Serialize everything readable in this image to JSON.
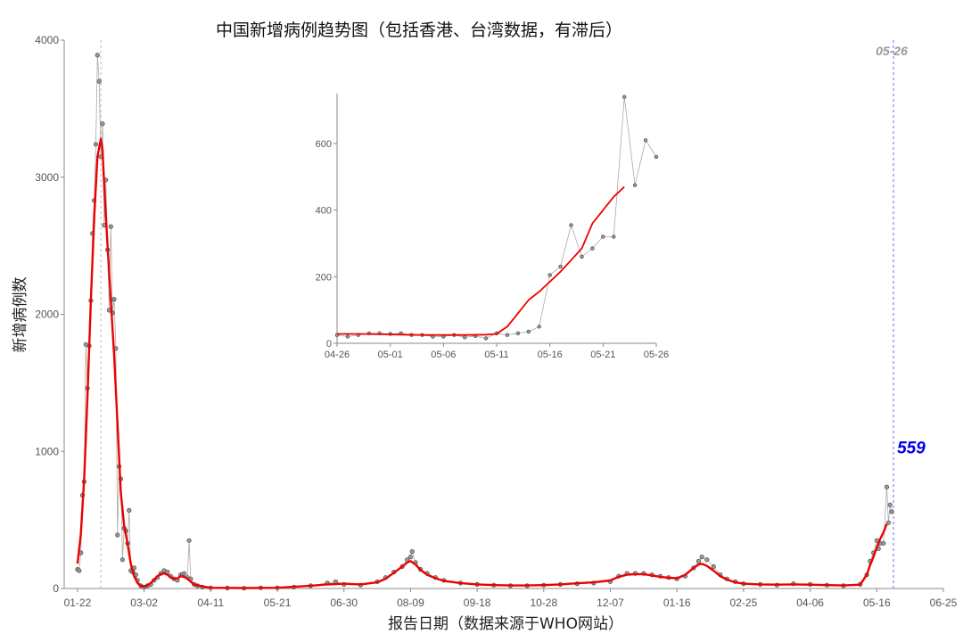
{
  "colors": {
    "smooth_line": "#ee0000",
    "raw_line": "#aaaaaa",
    "points": "#555555",
    "annotation_value": "#0000ee",
    "latest_date_marker": "#6666ff",
    "peak_marker": "#bbbbbb"
  },
  "chart_data": [
    {
      "type": "line",
      "title": "中国新增病例趋势图（包括香港、台湾数据，有滞后）",
      "xlabel": "报告日期（数据来源于WHO网站）",
      "ylabel": "新增病例数",
      "x_tick_labels": [
        "01-22",
        "03-02",
        "04-11",
        "05-21",
        "06-30",
        "08-09",
        "09-18",
        "10-28",
        "12-07",
        "01-16",
        "02-25",
        "04-06",
        "05-16",
        "06-25"
      ],
      "y_tick_labels": [
        "0",
        "1000",
        "2000",
        "3000",
        "4000"
      ],
      "ylim": [
        0,
        4000
      ],
      "x_range_days": [
        -8,
        520
      ],
      "grid": false,
      "annotations": {
        "peak_line_day": 14,
        "latest_line_day": 490,
        "latest_date_label": "05-26",
        "latest_value_label": "559"
      },
      "series": [
        {
          "kind": "daily",
          "points": [
            [
              0,
              140
            ],
            [
              1,
              130
            ],
            [
              2,
              260
            ],
            [
              3,
              680
            ],
            [
              4,
              780
            ],
            [
              5,
              1780
            ],
            [
              6,
              1460
            ],
            [
              7,
              1770
            ],
            [
              8,
              2100
            ],
            [
              9,
              2590
            ],
            [
              10,
              2830
            ],
            [
              11,
              3240
            ],
            [
              12,
              3890
            ],
            [
              13,
              3700
            ],
            [
              14,
              3150
            ],
            [
              15,
              3390
            ],
            [
              16,
              2650
            ],
            [
              17,
              2980
            ],
            [
              18,
              2470
            ],
            [
              19,
              2030
            ],
            [
              20,
              2640
            ],
            [
              21,
              2010
            ],
            [
              22,
              2110
            ],
            [
              23,
              1750
            ],
            [
              24,
              390
            ],
            [
              25,
              890
            ],
            [
              26,
              800
            ],
            [
              27,
              210
            ],
            [
              28,
              440
            ],
            [
              29,
              420
            ],
            [
              30,
              330
            ],
            [
              31,
              570
            ],
            [
              32,
              130
            ],
            [
              33,
              120
            ],
            [
              34,
              150
            ],
            [
              35,
              100
            ],
            [
              36,
              60
            ],
            [
              38,
              20
            ],
            [
              40,
              10
            ],
            [
              42,
              20
            ],
            [
              44,
              30
            ],
            [
              46,
              60
            ],
            [
              48,
              80
            ],
            [
              50,
              110
            ],
            [
              52,
              130
            ],
            [
              54,
              120
            ],
            [
              56,
              90
            ],
            [
              58,
              70
            ],
            [
              60,
              60
            ],
            [
              62,
              100
            ],
            [
              63,
              100
            ],
            [
              64,
              110
            ],
            [
              66,
              80
            ],
            [
              67,
              350
            ],
            [
              68,
              70
            ],
            [
              70,
              30
            ],
            [
              72,
              20
            ],
            [
              75,
              10
            ],
            [
              80,
              5
            ],
            [
              90,
              3
            ],
            [
              100,
              2
            ],
            [
              110,
              5
            ],
            [
              120,
              5
            ],
            [
              130,
              10
            ],
            [
              140,
              20
            ],
            [
              150,
              40
            ],
            [
              155,
              50
            ],
            [
              160,
              30
            ],
            [
              170,
              25
            ],
            [
              180,
              50
            ],
            [
              185,
              80
            ],
            [
              190,
              120
            ],
            [
              195,
              160
            ],
            [
              198,
              210
            ],
            [
              200,
              230
            ],
            [
              201,
              270
            ],
            [
              203,
              190
            ],
            [
              206,
              140
            ],
            [
              210,
              110
            ],
            [
              215,
              80
            ],
            [
              220,
              60
            ],
            [
              230,
              40
            ],
            [
              240,
              30
            ],
            [
              250,
              25
            ],
            [
              260,
              20
            ],
            [
              270,
              20
            ],
            [
              280,
              25
            ],
            [
              290,
              30
            ],
            [
              300,
              35
            ],
            [
              310,
              40
            ],
            [
              320,
              50
            ],
            [
              325,
              90
            ],
            [
              330,
              110
            ],
            [
              335,
              110
            ],
            [
              340,
              110
            ],
            [
              345,
              100
            ],
            [
              350,
              90
            ],
            [
              355,
              80
            ],
            [
              360,
              70
            ],
            [
              365,
              90
            ],
            [
              370,
              150
            ],
            [
              373,
              200
            ],
            [
              375,
              230
            ],
            [
              378,
              210
            ],
            [
              382,
              160
            ],
            [
              386,
              100
            ],
            [
              390,
              70
            ],
            [
              395,
              50
            ],
            [
              400,
              35
            ],
            [
              410,
              30
            ],
            [
              420,
              25
            ],
            [
              430,
              35
            ],
            [
              440,
              30
            ],
            [
              450,
              25
            ],
            [
              460,
              20
            ],
            [
              470,
              30
            ],
            [
              474,
              100
            ],
            [
              476,
              200
            ],
            [
              478,
              260
            ],
            [
              480,
              350
            ],
            [
              481,
              290
            ],
            [
              482,
              330
            ],
            [
              484,
              330
            ],
            [
              486,
              740
            ],
            [
              487,
              480
            ],
            [
              488,
              610
            ],
            [
              489,
              560
            ]
          ]
        },
        {
          "kind": "smoothed",
          "points": [
            [
              0,
              180
            ],
            [
              2,
              400
            ],
            [
              4,
              800
            ],
            [
              6,
              1400
            ],
            [
              8,
              2100
            ],
            [
              10,
              2700
            ],
            [
              12,
              3150
            ],
            [
              14,
              3280
            ],
            [
              15,
              3200
            ],
            [
              16,
              2950
            ],
            [
              18,
              2500
            ],
            [
              20,
              2100
            ],
            [
              22,
              1700
            ],
            [
              24,
              1200
            ],
            [
              26,
              700
            ],
            [
              28,
              460
            ],
            [
              30,
              330
            ],
            [
              32,
              180
            ],
            [
              34,
              90
            ],
            [
              36,
              40
            ],
            [
              38,
              20
            ],
            [
              40,
              15
            ],
            [
              42,
              25
            ],
            [
              44,
              40
            ],
            [
              46,
              65
            ],
            [
              48,
              90
            ],
            [
              50,
              105
            ],
            [
              52,
              110
            ],
            [
              54,
              100
            ],
            [
              56,
              80
            ],
            [
              58,
              70
            ],
            [
              60,
              75
            ],
            [
              62,
              90
            ],
            [
              64,
              85
            ],
            [
              66,
              70
            ],
            [
              68,
              50
            ],
            [
              70,
              30
            ],
            [
              75,
              15
            ],
            [
              80,
              5
            ],
            [
              100,
              3
            ],
            [
              120,
              5
            ],
            [
              140,
              20
            ],
            [
              150,
              30
            ],
            [
              160,
              35
            ],
            [
              170,
              30
            ],
            [
              180,
              45
            ],
            [
              185,
              70
            ],
            [
              190,
              115
            ],
            [
              195,
              160
            ],
            [
              198,
              190
            ],
            [
              200,
              200
            ],
            [
              203,
              175
            ],
            [
              206,
              135
            ],
            [
              210,
              100
            ],
            [
              215,
              75
            ],
            [
              220,
              55
            ],
            [
              230,
              40
            ],
            [
              240,
              30
            ],
            [
              250,
              25
            ],
            [
              260,
              22
            ],
            [
              270,
              22
            ],
            [
              280,
              25
            ],
            [
              290,
              30
            ],
            [
              300,
              38
            ],
            [
              310,
              45
            ],
            [
              320,
              60
            ],
            [
              325,
              85
            ],
            [
              330,
              100
            ],
            [
              335,
              105
            ],
            [
              340,
              105
            ],
            [
              345,
              95
            ],
            [
              350,
              85
            ],
            [
              355,
              78
            ],
            [
              360,
              75
            ],
            [
              365,
              100
            ],
            [
              370,
              150
            ],
            [
              373,
              175
            ],
            [
              375,
              180
            ],
            [
              378,
              165
            ],
            [
              382,
              130
            ],
            [
              386,
              90
            ],
            [
              390,
              65
            ],
            [
              395,
              45
            ],
            [
              400,
              35
            ],
            [
              410,
              30
            ],
            [
              420,
              28
            ],
            [
              430,
              30
            ],
            [
              440,
              28
            ],
            [
              450,
              25
            ],
            [
              460,
              22
            ],
            [
              470,
              28
            ],
            [
              474,
              100
            ],
            [
              476,
              170
            ],
            [
              478,
              230
            ],
            [
              480,
              300
            ],
            [
              482,
              360
            ],
            [
              484,
              410
            ],
            [
              486,
              470
            ]
          ]
        }
      ]
    },
    {
      "type": "line",
      "title": "",
      "x_tick_labels": [
        "04-26",
        "05-01",
        "05-06",
        "05-11",
        "05-16",
        "05-21",
        "05-26"
      ],
      "y_tick_labels": [
        "0",
        "200",
        "400",
        "600"
      ],
      "ylim": [
        0,
        750
      ],
      "x_range_days": [
        0,
        30
      ],
      "series": [
        {
          "kind": "daily",
          "points": [
            [
              0,
              25
            ],
            [
              1,
              20
            ],
            [
              2,
              25
            ],
            [
              3,
              30
            ],
            [
              4,
              30
            ],
            [
              5,
              28
            ],
            [
              6,
              30
            ],
            [
              7,
              25
            ],
            [
              8,
              25
            ],
            [
              9,
              20
            ],
            [
              10,
              20
            ],
            [
              11,
              25
            ],
            [
              12,
              18
            ],
            [
              13,
              22
            ],
            [
              14,
              15
            ],
            [
              15,
              30
            ],
            [
              16,
              25
            ],
            [
              17,
              30
            ],
            [
              18,
              35
            ],
            [
              19,
              50
            ],
            [
              20,
              205
            ],
            [
              21,
              230
            ],
            [
              22,
              355
            ],
            [
              23,
              260
            ],
            [
              24,
              285
            ],
            [
              25,
              320
            ],
            [
              26,
              320
            ],
            [
              27,
              740
            ],
            [
              28,
              475
            ],
            [
              29,
              610
            ],
            [
              30,
              560
            ]
          ]
        },
        {
          "kind": "smoothed",
          "points": [
            [
              0,
              28
            ],
            [
              2,
              28
            ],
            [
              4,
              27
            ],
            [
              6,
              26
            ],
            [
              8,
              25
            ],
            [
              10,
              25
            ],
            [
              12,
              25
            ],
            [
              14,
              26
            ],
            [
              15,
              28
            ],
            [
              16,
              50
            ],
            [
              17,
              90
            ],
            [
              18,
              130
            ],
            [
              19,
              155
            ],
            [
              20,
              185
            ],
            [
              21,
              215
            ],
            [
              22,
              250
            ],
            [
              23,
              285
            ],
            [
              24,
              360
            ],
            [
              25,
              400
            ],
            [
              26,
              440
            ],
            [
              27,
              470
            ]
          ]
        }
      ]
    }
  ]
}
